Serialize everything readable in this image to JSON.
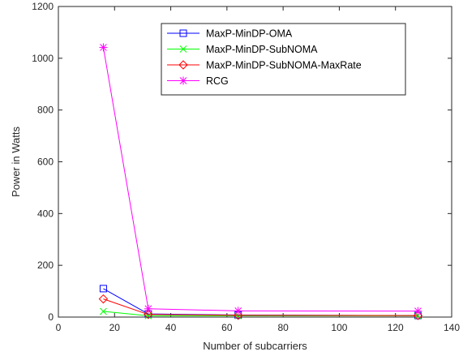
{
  "chart_data": {
    "type": "line",
    "title": "",
    "xlabel": "Number of subcarriers",
    "ylabel": "Power in Watts",
    "xlim": [
      0,
      140
    ],
    "ylim": [
      0,
      1200
    ],
    "xticks": [
      0,
      20,
      40,
      60,
      80,
      100,
      120,
      140
    ],
    "yticks": [
      0,
      200,
      400,
      600,
      800,
      1000,
      1200
    ],
    "grid": false,
    "legend_position": "top-right",
    "x": [
      16,
      32,
      64,
      128
    ],
    "series": [
      {
        "name": "MaxP-MinDP-OMA",
        "values": [
          110,
          12,
          8,
          6
        ],
        "color": "#0000ff",
        "marker": "square"
      },
      {
        "name": "MaxP-MinDP-SubNOMA",
        "values": [
          22,
          5,
          5,
          5
        ],
        "color": "#00ff00",
        "marker": "x"
      },
      {
        "name": "MaxP-MinDP-SubNOMA-MaxRate",
        "values": [
          70,
          10,
          7,
          6
        ],
        "color": "#ff0000",
        "marker": "diamond"
      },
      {
        "name": "RCG",
        "values": [
          1042,
          32,
          24,
          23
        ],
        "color": "#ff00ff",
        "marker": "asterisk"
      }
    ]
  }
}
